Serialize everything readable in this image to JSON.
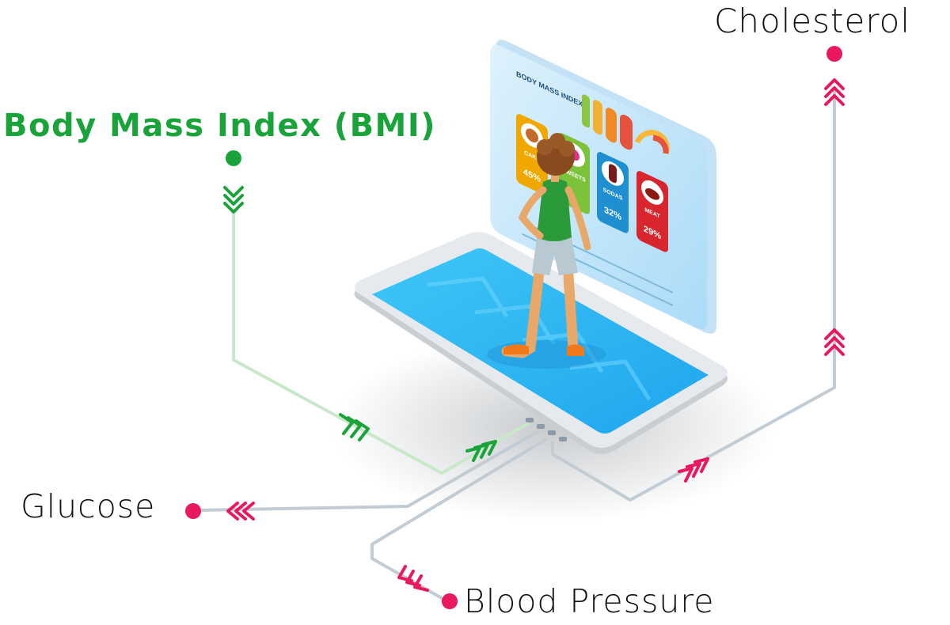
{
  "labels": {
    "bmi": "Body Mass Index (BMI)",
    "cholesterol": "Cholesterol",
    "glucose": "Glucose",
    "blood_pressure": "Blood Pressure"
  },
  "screen": {
    "title": "BODY MASS INDEX",
    "cards": [
      {
        "name": "CAKE",
        "percent": "45%",
        "color": "#f0a800"
      },
      {
        "name": "SWEETS",
        "percent": "",
        "color": "#7cc23a"
      },
      {
        "name": "SODAS",
        "percent": "32%",
        "color": "#1f8fcf"
      },
      {
        "name": "MEAT",
        "percent": "29%",
        "color": "#d8262e"
      }
    ]
  },
  "colors": {
    "bmi_accent": "#1aa33a",
    "bmi_line": "#c9e8c9",
    "marker_pink": "#e8195f",
    "connector": "#c2ccd4",
    "phone_screen": "#26b3f3",
    "panel": "#bfe6fb"
  },
  "icons": [
    "chevron-down-icon",
    "chevron-up-icon",
    "chevron-left-icon",
    "chevron-right-icon",
    "person-figure",
    "phone-icon"
  ]
}
